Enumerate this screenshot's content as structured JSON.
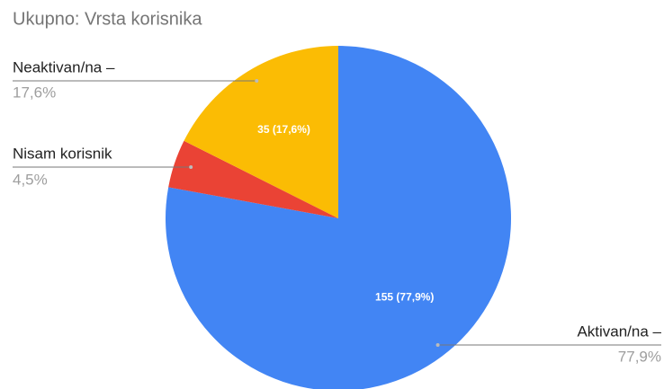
{
  "chart_data": {
    "type": "pie",
    "title": "Ukupno: Vrsta korisnika",
    "categories": [
      "Aktivan/na –",
      "Nisam korisnik",
      "Neaktivan/na –"
    ],
    "values": [
      155,
      9,
      35
    ],
    "value_labels": [
      "155 (77,9%)",
      null,
      "35 (17,6%)"
    ],
    "percent_labels": [
      "77,9%",
      "4,5%",
      "17,6%"
    ],
    "colors": [
      "#4285f4",
      "#ea4335",
      "#fbbc04"
    ]
  }
}
